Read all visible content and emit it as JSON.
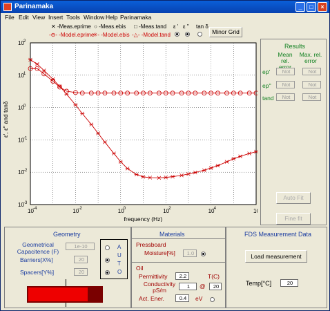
{
  "window": {
    "title": "Parinamaka"
  },
  "menu": [
    "File",
    "Edit",
    "View",
    "Insert",
    "Tools",
    "Window",
    "Help",
    "Parinamaka"
  ],
  "legend": {
    "row1": [
      "Meas.eprime",
      "Meas.ebis",
      "Meas.tand"
    ],
    "row2": [
      "Model.eprime",
      "Model.ebis",
      "Model.tand"
    ],
    "selector_labels": [
      "ε '",
      "ε ''",
      "tan δ"
    ],
    "minor_grid_label": "Minor Grid"
  },
  "chart_data": {
    "type": "line",
    "xlabel": "frequency (Hz)",
    "ylabel": "ε', ε'' and tanδ",
    "xscale": "log",
    "yscale": "log",
    "xlim": [
      0.0001,
      1000000
    ],
    "ylim": [
      0.001,
      100
    ],
    "xticks": [
      "10",
      "10",
      "10",
      "10",
      "10",
      "10"
    ],
    "xtick_exp": [
      "-4",
      "-2",
      "0",
      "2",
      "4",
      "6"
    ],
    "yticks": [
      "10",
      "10",
      "10",
      "10",
      "10",
      "10"
    ],
    "ytick_exp": [
      "-3",
      "-2",
      "-1",
      "0",
      "1",
      "2"
    ],
    "series": [
      {
        "x": [
          0.0001,
          0.0002,
          0.0004,
          0.001,
          0.002,
          0.004,
          0.01,
          0.02,
          0.05,
          0.1,
          0.2,
          0.5,
          1,
          2,
          5,
          10,
          20,
          50,
          100,
          200,
          500,
          1000,
          2000,
          5000,
          10000,
          20000,
          50000,
          100000,
          200000,
          500000,
          1000000
        ],
        "y": [
          16,
          16,
          11,
          6.5,
          4.3,
          3.2,
          2.9,
          2.8,
          2.8,
          2.8,
          2.8,
          2.8,
          2.8,
          2.8,
          2.8,
          2.8,
          2.8,
          2.8,
          2.8,
          2.8,
          2.8,
          2.8,
          2.8,
          2.8,
          2.8,
          2.8,
          2.8,
          2.8,
          2.8,
          2.8,
          2.8
        ],
        "marker": "circle",
        "color": "#cc0000"
      },
      {
        "x": [
          0.0001,
          0.0002,
          0.0004,
          0.001,
          0.002,
          0.004,
          0.01,
          0.02,
          0.05,
          0.1,
          0.2,
          0.5,
          1,
          2,
          5,
          10,
          20,
          50,
          100,
          200,
          500,
          1000,
          2000,
          5000,
          10000,
          20000,
          50000,
          100000,
          200000,
          500000,
          1000000
        ],
        "y": [
          30,
          22,
          14,
          7.5,
          4.5,
          2.6,
          1.2,
          0.65,
          0.3,
          0.16,
          0.085,
          0.038,
          0.021,
          0.013,
          0.0085,
          0.0072,
          0.0068,
          0.0067,
          0.0069,
          0.0073,
          0.008,
          0.0088,
          0.0098,
          0.0115,
          0.0135,
          0.016,
          0.021,
          0.026,
          0.031,
          0.038,
          0.043
        ],
        "marker": "star",
        "color": "#cc0000"
      }
    ]
  },
  "results": {
    "title": "Results",
    "col1": "Mean rel. error",
    "col2": "Max. rel. error",
    "rows": [
      {
        "label": "ep'",
        "mean": "Not",
        "max": "Not"
      },
      {
        "label": "ep''",
        "mean": "Not",
        "max": "Not"
      },
      {
        "label": "tand",
        "mean": "Not",
        "max": "Not"
      }
    ],
    "auto_fit_label": "Auto Fit",
    "fine_fit_label": "Fine fit"
  },
  "geometry": {
    "title": "Geometry",
    "cap_label": "Geometrical Capacitence (F)",
    "cap_value": "1e-10",
    "barriers_label": "Barriers[X%]",
    "barriers_value": "20",
    "spacers_label": "Spacers[Y%]",
    "spacers_value": "20",
    "auto_letters": [
      "A",
      "U",
      "T",
      "O"
    ]
  },
  "materials": {
    "title": "Materials",
    "pressboard_label": "Pressboard",
    "moisture_label": "Moisture[%]",
    "moisture_value": "1.0",
    "oil_label": "Oil",
    "permittivity_label": "Permittivity",
    "permittivity_value": "2.2",
    "temp_label": "T(C)",
    "conductivity_label": "Conductivity pS/m",
    "conductivity_value": "1",
    "at_symbol": "@",
    "temp_value": "20",
    "act_label": "Act. Ener.",
    "act_value": "0.4",
    "ev_label": "eV"
  },
  "fds": {
    "title": "FDS Measurement Data",
    "load_label": "Load measurement",
    "temp_label": "Temp[°C]",
    "temp_value": "20"
  },
  "colors": {
    "accent_red": "#cc0000",
    "title_blue": "#1a3ca0",
    "results_green": "#108020"
  }
}
